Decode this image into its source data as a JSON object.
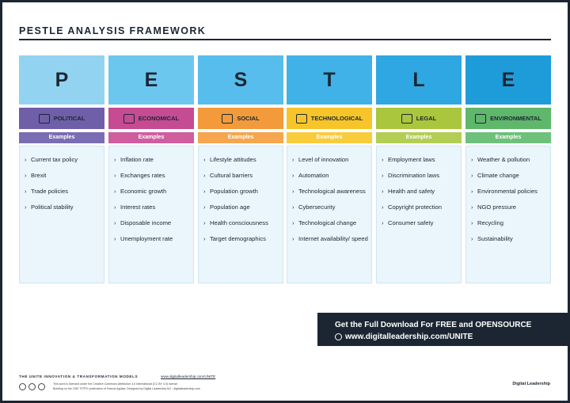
{
  "header": {
    "title": "PESTLE ANALYSIS FRAMEWORK"
  },
  "columns": [
    {
      "letter": "P",
      "label": "POLITICAL",
      "examples_label": "Examples",
      "items": [
        "Current tax policy",
        "Brexit",
        "Trade policies",
        "Political stability"
      ]
    },
    {
      "letter": "E",
      "label": "ECONOMICAL",
      "examples_label": "Examples",
      "items": [
        "Inflation rate",
        "Exchanges rates",
        "Economic growth",
        "Interest rates",
        "Disposable income",
        "Unemployment rate"
      ]
    },
    {
      "letter": "S",
      "label": "SOCIAL",
      "examples_label": "Examples",
      "items": [
        "Lifestyle attitudes",
        "Cultural barriers",
        "Population growth",
        "Population age",
        "Health consciousness",
        "Target demographics"
      ]
    },
    {
      "letter": "T",
      "label": "TECHNOLOGICAL",
      "examples_label": "Examples",
      "items": [
        "Level of innovation",
        "Automation",
        "Technological awareness",
        "Cybersecurity",
        "Technological change",
        "Internet availability/ speed"
      ]
    },
    {
      "letter": "L",
      "label": "LEGAL",
      "examples_label": "Examples",
      "items": [
        "Employment laws",
        "Discrimination laws",
        "Health and safety",
        "Copyright protection",
        "Consumer safety"
      ]
    },
    {
      "letter": "E",
      "label": "ENVIRONMENTAL",
      "examples_label": "Examples",
      "items": [
        "Weather & pollution",
        "Climate change",
        "Environmental policies",
        "NGO pressure",
        "Recycling",
        "Sustainability"
      ]
    }
  ],
  "banner": {
    "line1": "Get the Full Download For FREE and OPENSOURCE",
    "line2": "www.digitalleadership.com/UNITE"
  },
  "footer": {
    "models": "THE UNITE INNOVATION & TRANSFORMATION MODELS",
    "url": "www.digitalleadership.com/UNITE",
    "license": [
      "This work is licensed under the Creative Commons Attribution 4.0 International (CC BY 4.0) license",
      "Building on the 1967 'ETPS' publication of Francis Aguilar. Designed by Digital Leadership AG - digitalleadership.com"
    ],
    "brand": "Digital Leadership"
  }
}
